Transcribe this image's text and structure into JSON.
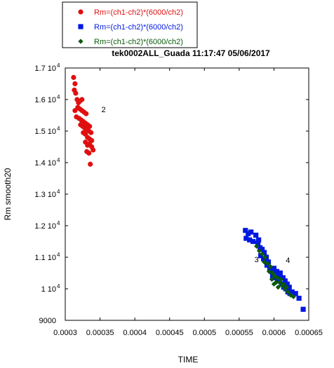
{
  "chart_data": {
    "type": "scatter",
    "title": "tek0002ALL_Guada 11:17:47  05/06/2017",
    "xlabel": "TIME",
    "ylabel": "Rm smooth20",
    "xlim": [
      0.0003,
      0.00065
    ],
    "ylim": [
      9000,
      17000
    ],
    "x_ticks": [
      "0.0003",
      "0.00035",
      "0.0004",
      "0.00045",
      "0.0005",
      "0.00055",
      "0.0006",
      "0.00065"
    ],
    "x_tick_values": [
      0.0003,
      0.00035,
      0.0004,
      0.00045,
      0.0005,
      0.00055,
      0.0006,
      0.00065
    ],
    "y_ticks": [
      {
        "value": 17000,
        "base": "1.7 10",
        "exp": "4"
      },
      {
        "value": 16000,
        "base": "1.6 10",
        "exp": "4"
      },
      {
        "value": 15000,
        "base": "1.5 10",
        "exp": "4"
      },
      {
        "value": 14000,
        "base": "1.4 10",
        "exp": "4"
      },
      {
        "value": 13000,
        "base": "1.3 10",
        "exp": "4"
      },
      {
        "value": 12000,
        "base": "1.2 10",
        "exp": "4"
      },
      {
        "value": 11000,
        "base": "1.1 10",
        "exp": "4"
      },
      {
        "value": 10000,
        "base": "1 10",
        "exp": "4"
      },
      {
        "value": 9000,
        "base": "9000",
        "exp": ""
      }
    ],
    "legend_position": "top-left, above plot",
    "annotations": [
      {
        "text": "2",
        "x": 0.000352,
        "y": 15600
      },
      {
        "text": "3",
        "x": 0.000572,
        "y": 10850
      },
      {
        "text": "4",
        "x": 0.000617,
        "y": 10820
      }
    ],
    "series": [
      {
        "name": "Rm=(ch1-ch2)*(6000/ch2)",
        "color": "#e01010",
        "marker": "circle",
        "points": [
          [
            0.000312,
            16700
          ],
          [
            0.000314,
            16500
          ],
          [
            0.000313,
            16300
          ],
          [
            0.000315,
            16200
          ],
          [
            0.000317,
            16000
          ],
          [
            0.000319,
            15900
          ],
          [
            0.000321,
            15950
          ],
          [
            0.000324,
            16000
          ],
          [
            0.000318,
            15750
          ],
          [
            0.000321,
            15700
          ],
          [
            0.000324,
            15650
          ],
          [
            0.000327,
            15600
          ],
          [
            0.00033,
            15550
          ],
          [
            0.00032,
            15400
          ],
          [
            0.000323,
            15350
          ],
          [
            0.000326,
            15300
          ],
          [
            0.000329,
            15250
          ],
          [
            0.000332,
            15200
          ],
          [
            0.000335,
            15150
          ],
          [
            0.000322,
            15200
          ],
          [
            0.000325,
            15150
          ],
          [
            0.000328,
            15100
          ],
          [
            0.000331,
            15050
          ],
          [
            0.000334,
            15000
          ],
          [
            0.000337,
            14950
          ],
          [
            0.000326,
            14950
          ],
          [
            0.000329,
            14900
          ],
          [
            0.000332,
            14800
          ],
          [
            0.000335,
            14750
          ],
          [
            0.000338,
            14700
          ],
          [
            0.000329,
            14650
          ],
          [
            0.000332,
            14550
          ],
          [
            0.000335,
            14600
          ],
          [
            0.000338,
            14500
          ],
          [
            0.00034,
            14400
          ],
          [
            0.000331,
            14350
          ],
          [
            0.000334,
            14300
          ],
          [
            0.000336,
            13950
          ],
          [
            0.000314,
            15650
          ],
          [
            0.000316,
            15450
          ]
        ]
      },
      {
        "name": "Rm=(ch1-ch2)*(6000/ch2)",
        "color": "#0018e0",
        "marker": "square",
        "points": [
          [
            0.000559,
            11850
          ],
          [
            0.000563,
            11750
          ],
          [
            0.000567,
            11800
          ],
          [
            0.00056,
            11600
          ],
          [
            0.000565,
            11550
          ],
          [
            0.00057,
            11500
          ],
          [
            0.000574,
            11700
          ],
          [
            0.000577,
            11450
          ],
          [
            0.00058,
            11300
          ],
          [
            0.000578,
            11550
          ],
          [
            0.000583,
            11250
          ],
          [
            0.000586,
            11150
          ],
          [
            0.000581,
            11050
          ],
          [
            0.000585,
            10950
          ],
          [
            0.000589,
            11000
          ],
          [
            0.000592,
            10850
          ],
          [
            0.00059,
            10750
          ],
          [
            0.000594,
            10650
          ],
          [
            0.000597,
            10550
          ],
          [
            0.0006,
            10650
          ],
          [
            0.000598,
            10400
          ],
          [
            0.000602,
            10350
          ],
          [
            0.000605,
            10250
          ],
          [
            0.000608,
            10300
          ],
          [
            0.000611,
            10150
          ],
          [
            0.000614,
            10050
          ],
          [
            0.000617,
            10000
          ],
          [
            0.00062,
            9900
          ],
          [
            0.000623,
            9850
          ],
          [
            0.000606,
            10450
          ],
          [
            0.000609,
            10500
          ],
          [
            0.000613,
            10350
          ],
          [
            0.000616,
            10250
          ],
          [
            0.000619,
            10150
          ],
          [
            0.000622,
            10050
          ],
          [
            0.000626,
            9900
          ],
          [
            0.000631,
            9850
          ],
          [
            0.000636,
            9700
          ],
          [
            0.000642,
            9350
          ],
          [
            0.000604,
            10550
          ]
        ]
      },
      {
        "name": "Rm=(ch1-ch2)*(6000/ch2)",
        "color": "#0a5a0a",
        "marker": "diamond",
        "points": [
          [
            0.000575,
            11350
          ],
          [
            0.000579,
            11200
          ],
          [
            0.000583,
            11100
          ],
          [
            0.000587,
            11000
          ],
          [
            0.000586,
            10850
          ],
          [
            0.000591,
            10800
          ],
          [
            0.000595,
            10700
          ],
          [
            0.000593,
            10550
          ],
          [
            0.000598,
            10500
          ],
          [
            0.000597,
            10300
          ],
          [
            0.000601,
            10400
          ],
          [
            0.000605,
            10350
          ],
          [
            0.000603,
            10200
          ],
          [
            0.000608,
            10200
          ],
          [
            0.000612,
            10100
          ],
          [
            0.000616,
            10000
          ],
          [
            0.00062,
            9900
          ],
          [
            0.000624,
            9800
          ],
          [
            0.000628,
            9750
          ],
          [
            0.00061,
            10300
          ],
          [
            0.000614,
            10150
          ],
          [
            0.000618,
            10050
          ],
          [
            0.000606,
            10050
          ],
          [
            0.0006,
            10150
          ]
        ]
      }
    ]
  }
}
